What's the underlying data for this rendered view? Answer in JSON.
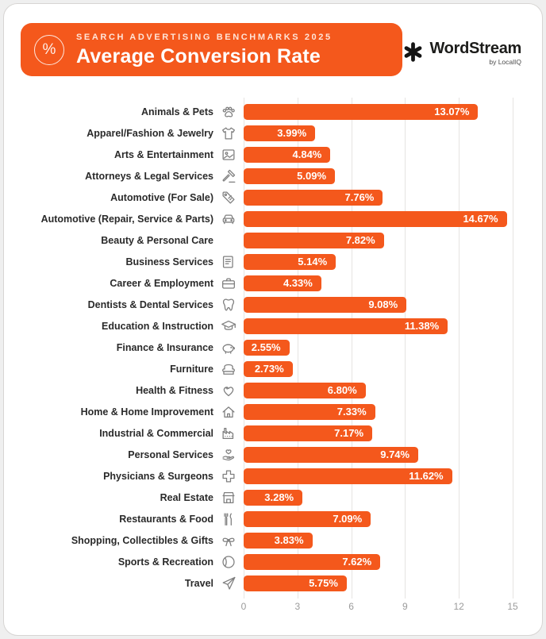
{
  "header": {
    "badge_symbol": "%",
    "eyebrow": "SEARCH ADVERTISING BENCHMARKS 2025",
    "title": "Average Conversion Rate",
    "brand": {
      "name": "WordStream",
      "byline": "by LocalIQ"
    },
    "accent_color": "#F4581C"
  },
  "chart_data": {
    "type": "bar",
    "orientation": "horizontal",
    "title": "Average Conversion Rate",
    "subtitle": "Search Advertising Benchmarks 2025",
    "xlabel": "",
    "ylabel": "",
    "xlim": [
      0,
      15
    ],
    "x_ticks": [
      0,
      3,
      6,
      9,
      12,
      15
    ],
    "grid": true,
    "legend": false,
    "bar_color": "#F4581C",
    "value_suffix": "%",
    "categories": [
      "Animals & Pets",
      "Apparel/Fashion & Jewelry",
      "Arts & Entertainment",
      "Attorneys & Legal Services",
      "Automotive (For Sale)",
      "Automotive (Repair, Service & Parts)",
      "Beauty & Personal Care",
      "Business Services",
      "Career & Employment",
      "Dentists & Dental Services",
      "Education & Instruction",
      "Finance & Insurance",
      "Furniture",
      "Health & Fitness",
      "Home & Home Improvement",
      "Industrial & Commercial",
      "Personal Services",
      "Physicians & Surgeons",
      "Real Estate",
      "Restaurants & Food",
      "Shopping, Collectibles & Gifts",
      "Sports & Recreation",
      "Travel"
    ],
    "values": [
      13.07,
      3.99,
      4.84,
      5.09,
      7.76,
      14.67,
      7.82,
      5.14,
      4.33,
      9.08,
      11.38,
      2.55,
      2.73,
      6.8,
      7.33,
      7.17,
      9.74,
      11.62,
      3.28,
      7.09,
      3.83,
      7.62,
      5.75
    ],
    "value_labels": [
      "13.07%",
      "3.99%",
      "4.84%",
      "5.09%",
      "7.76%",
      "14.67%",
      "7.82%",
      "5.14%",
      "4.33%",
      "9.08%",
      "11.38%",
      "2.55%",
      "2.73%",
      "6.80%",
      "7.33%",
      "7.17%",
      "9.74%",
      "11.62%",
      "3.28%",
      "7.09%",
      "3.83%",
      "7.62%",
      "5.75%"
    ],
    "icons": [
      "paw-icon",
      "tshirt-icon",
      "picture-icon",
      "gavel-icon",
      "car-key-tag-icon",
      "car-icon",
      "makeup-brush-icon",
      "document-icon",
      "briefcase-icon",
      "tooth-icon",
      "graduation-cap-icon",
      "piggy-bank-icon",
      "armchair-icon",
      "heart-plus-icon",
      "house-icon",
      "factory-icon",
      "hand-heart-icon",
      "medical-cross-icon",
      "storefront-icon",
      "cutlery-icon",
      "gift-bow-icon",
      "ball-icon",
      "airplane-icon"
    ]
  }
}
